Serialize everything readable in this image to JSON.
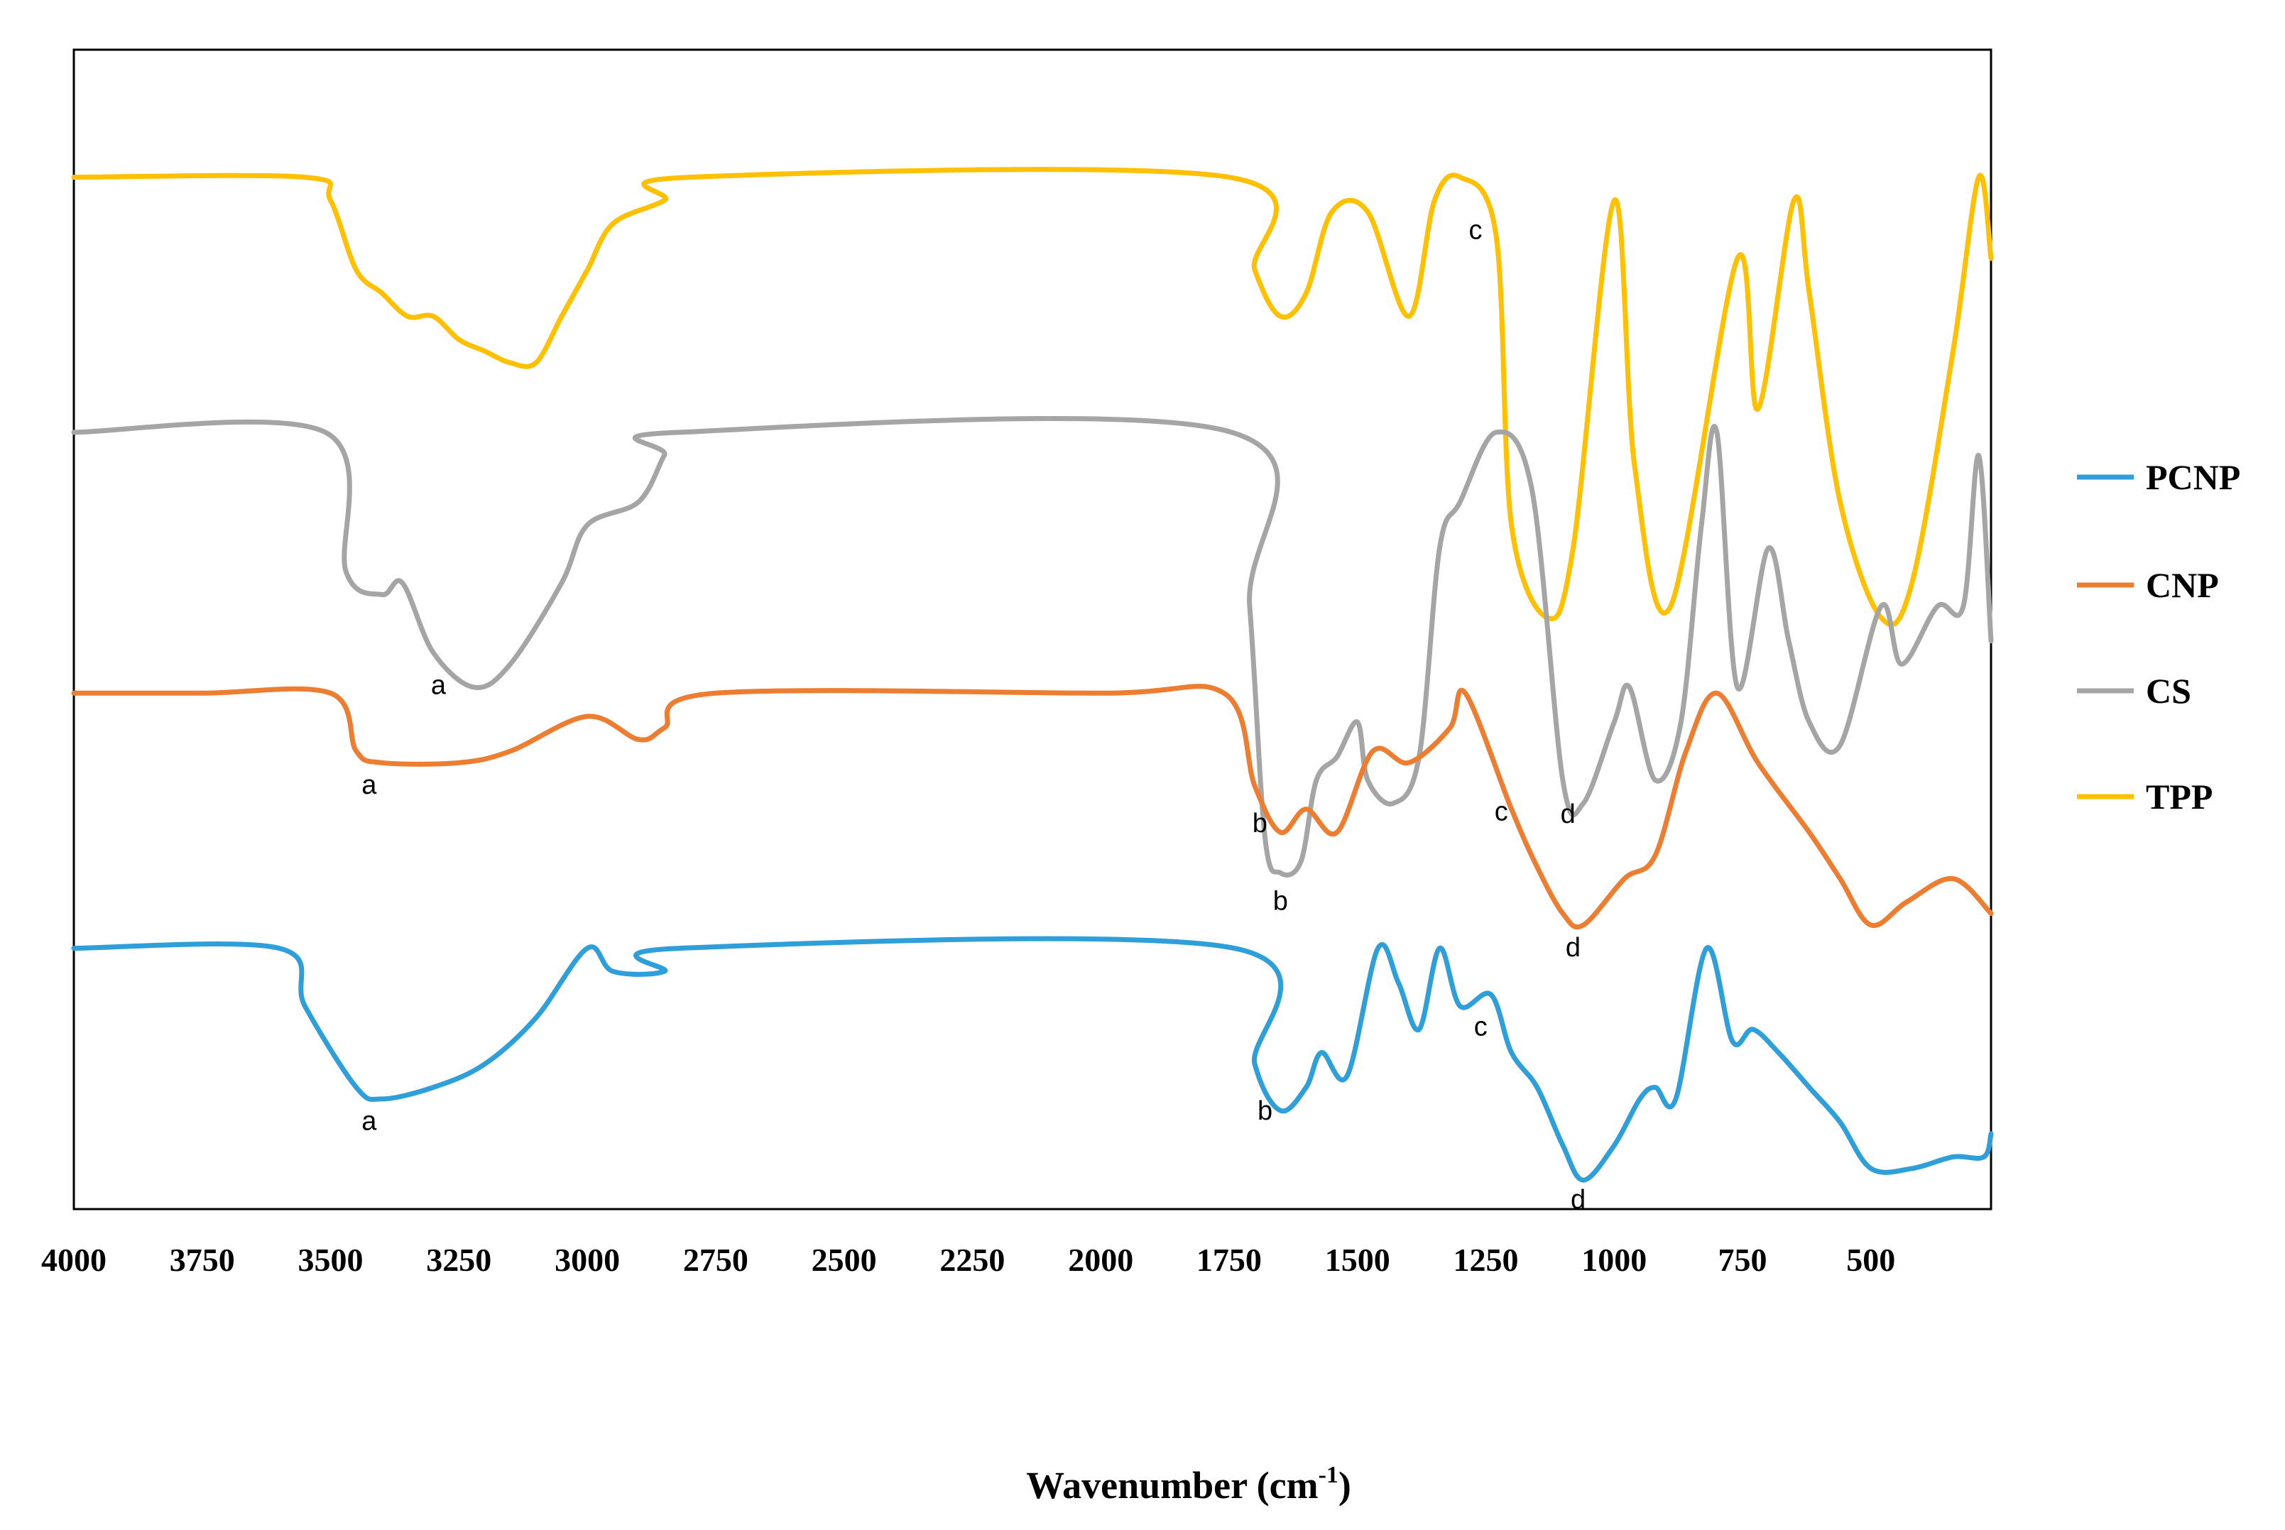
{
  "chart_data": {
    "type": "line",
    "title": "",
    "xlabel": "Wavenumber (cm",
    "xlabel_superscript": "-1",
    "xlabel_suffix": ")",
    "ylabel": "",
    "xlim": [
      4000,
      266
    ],
    "x_reversed": true,
    "x_ticks": [
      4000,
      3750,
      3500,
      3250,
      3000,
      2750,
      2500,
      2250,
      2000,
      1750,
      1500,
      1250,
      1000,
      750,
      500
    ],
    "grid": false,
    "legend_position": "right",
    "legend": [
      "PCNP",
      "CNP",
      "CS",
      "TPP"
    ],
    "series": [
      {
        "name": "TPP",
        "color": "#FFC000",
        "offset": 0.89,
        "points": [
          [
            4000,
            0
          ],
          [
            3550,
            0
          ],
          [
            3500,
            -0.02
          ],
          [
            3450,
            -0.08
          ],
          [
            3400,
            -0.1
          ],
          [
            3350,
            -0.12
          ],
          [
            3300,
            -0.12
          ],
          [
            3250,
            -0.14
          ],
          [
            3200,
            -0.15
          ],
          [
            3150,
            -0.16
          ],
          [
            3100,
            -0.16
          ],
          [
            3050,
            -0.12
          ],
          [
            3000,
            -0.08
          ],
          [
            2950,
            -0.04
          ],
          [
            2850,
            -0.02
          ],
          [
            2800,
            0
          ],
          [
            1750,
            0
          ],
          [
            1700,
            -0.08
          ],
          [
            1650,
            -0.12
          ],
          [
            1600,
            -0.1
          ],
          [
            1550,
            -0.03
          ],
          [
            1480,
            -0.03
          ],
          [
            1400,
            -0.12
          ],
          [
            1350,
            -0.02
          ],
          [
            1300,
            0
          ],
          [
            1230,
            -0.05
          ],
          [
            1200,
            -0.3
          ],
          [
            1130,
            -0.38
          ],
          [
            1080,
            -0.32
          ],
          [
            1000,
            -0.02
          ],
          [
            960,
            -0.25
          ],
          [
            890,
            -0.37
          ],
          [
            760,
            -0.07
          ],
          [
            720,
            -0.2
          ],
          [
            650,
            -0.02
          ],
          [
            620,
            -0.1
          ],
          [
            560,
            -0.28
          ],
          [
            480,
            -0.38
          ],
          [
            420,
            -0.35
          ],
          [
            340,
            -0.15
          ],
          [
            290,
            0
          ],
          [
            266,
            -0.07
          ]
        ]
      },
      {
        "name": "CS",
        "color": "#A5A5A5",
        "offset": 0.67,
        "points": [
          [
            4000,
            0
          ],
          [
            3510,
            0
          ],
          [
            3470,
            -0.12
          ],
          [
            3400,
            -0.14
          ],
          [
            3360,
            -0.13
          ],
          [
            3300,
            -0.19
          ],
          [
            3220,
            -0.22
          ],
          [
            3150,
            -0.2
          ],
          [
            3050,
            -0.13
          ],
          [
            3000,
            -0.08
          ],
          [
            2900,
            -0.06
          ],
          [
            2850,
            -0.02
          ],
          [
            2820,
            0
          ],
          [
            1745,
            0
          ],
          [
            1710,
            -0.15
          ],
          [
            1680,
            -0.35
          ],
          [
            1650,
            -0.38
          ],
          [
            1610,
            -0.37
          ],
          [
            1580,
            -0.3
          ],
          [
            1540,
            -0.28
          ],
          [
            1500,
            -0.25
          ],
          [
            1480,
            -0.3
          ],
          [
            1430,
            -0.32
          ],
          [
            1380,
            -0.28
          ],
          [
            1340,
            -0.1
          ],
          [
            1300,
            -0.06
          ],
          [
            1230,
            0
          ],
          [
            1160,
            -0.05
          ],
          [
            1100,
            -0.3
          ],
          [
            1060,
            -0.32
          ],
          [
            1000,
            -0.25
          ],
          [
            970,
            -0.22
          ],
          [
            920,
            -0.3
          ],
          [
            870,
            -0.25
          ],
          [
            830,
            -0.08
          ],
          [
            800,
            0
          ],
          [
            760,
            -0.22
          ],
          [
            700,
            -0.1
          ],
          [
            660,
            -0.18
          ],
          [
            620,
            -0.25
          ],
          [
            560,
            -0.27
          ],
          [
            480,
            -0.15
          ],
          [
            440,
            -0.2
          ],
          [
            370,
            -0.15
          ],
          [
            320,
            -0.15
          ],
          [
            290,
            -0.02
          ],
          [
            266,
            -0.18
          ]
        ]
      },
      {
        "name": "CNP",
        "color": "#ED7D31",
        "offset": 0.445,
        "points": [
          [
            4000,
            0
          ],
          [
            3750,
            0
          ],
          [
            3500,
            0
          ],
          [
            3450,
            -0.05
          ],
          [
            3400,
            -0.06
          ],
          [
            3250,
            -0.06
          ],
          [
            3150,
            -0.05
          ],
          [
            3000,
            -0.02
          ],
          [
            2900,
            -0.04
          ],
          [
            2850,
            -0.03
          ],
          [
            2750,
            0
          ],
          [
            2000,
            0
          ],
          [
            1760,
            0
          ],
          [
            1700,
            -0.08
          ],
          [
            1650,
            -0.12
          ],
          [
            1600,
            -0.1
          ],
          [
            1540,
            -0.12
          ],
          [
            1470,
            -0.05
          ],
          [
            1400,
            -0.06
          ],
          [
            1320,
            -0.03
          ],
          [
            1290,
            0
          ],
          [
            1200,
            -0.1
          ],
          [
            1150,
            -0.15
          ],
          [
            1100,
            -0.19
          ],
          [
            1060,
            -0.2
          ],
          [
            980,
            -0.16
          ],
          [
            920,
            -0.14
          ],
          [
            860,
            -0.05
          ],
          [
            800,
            0
          ],
          [
            720,
            -0.06
          ],
          [
            620,
            -0.12
          ],
          [
            560,
            -0.16
          ],
          [
            500,
            -0.2
          ],
          [
            430,
            -0.18
          ],
          [
            340,
            -0.16
          ],
          [
            266,
            -0.19
          ]
        ]
      },
      {
        "name": "PCNP",
        "color": "#2E9FD8",
        "offset": 0.225,
        "points": [
          [
            4000,
            0
          ],
          [
            3600,
            0
          ],
          [
            3550,
            -0.05
          ],
          [
            3450,
            -0.12
          ],
          [
            3400,
            -0.13
          ],
          [
            3300,
            -0.12
          ],
          [
            3200,
            -0.1
          ],
          [
            3100,
            -0.06
          ],
          [
            3000,
            0
          ],
          [
            2950,
            -0.02
          ],
          [
            2850,
            -0.02
          ],
          [
            2820,
            0
          ],
          [
            1740,
            0
          ],
          [
            1700,
            -0.1
          ],
          [
            1650,
            -0.14
          ],
          [
            1600,
            -0.12
          ],
          [
            1570,
            -0.09
          ],
          [
            1520,
            -0.11
          ],
          [
            1460,
            0
          ],
          [
            1420,
            -0.03
          ],
          [
            1380,
            -0.07
          ],
          [
            1340,
            0
          ],
          [
            1300,
            -0.05
          ],
          [
            1240,
            -0.04
          ],
          [
            1200,
            -0.09
          ],
          [
            1150,
            -0.12
          ],
          [
            1100,
            -0.17
          ],
          [
            1060,
            -0.2
          ],
          [
            1000,
            -0.17
          ],
          [
            950,
            -0.13
          ],
          [
            920,
            -0.12
          ],
          [
            880,
            -0.13
          ],
          [
            820,
            0
          ],
          [
            770,
            -0.08
          ],
          [
            730,
            -0.07
          ],
          [
            680,
            -0.09
          ],
          [
            620,
            -0.12
          ],
          [
            560,
            -0.15
          ],
          [
            500,
            -0.19
          ],
          [
            420,
            -0.19
          ],
          [
            340,
            -0.18
          ],
          [
            280,
            -0.18
          ],
          [
            266,
            -0.16
          ]
        ]
      }
    ],
    "annotations": [
      {
        "text": "a",
        "series": "CS",
        "x": 3290
      },
      {
        "text": "b",
        "series": "CS",
        "x": 1650
      },
      {
        "text": "d",
        "series": "CS",
        "x": 1090
      },
      {
        "text": "c",
        "series": "TPP",
        "x": 1270
      },
      {
        "text": "a",
        "series": "CNP",
        "x": 3425
      },
      {
        "text": "b",
        "series": "CNP",
        "x": 1690
      },
      {
        "text": "c",
        "series": "CNP",
        "x": 1220
      },
      {
        "text": "d",
        "series": "CNP",
        "x": 1080
      },
      {
        "text": "a",
        "series": "PCNP",
        "x": 3425
      },
      {
        "text": "b",
        "series": "PCNP",
        "x": 1680
      },
      {
        "text": "c",
        "series": "PCNP",
        "x": 1260
      },
      {
        "text": "d",
        "series": "PCNP",
        "x": 1070
      }
    ]
  }
}
